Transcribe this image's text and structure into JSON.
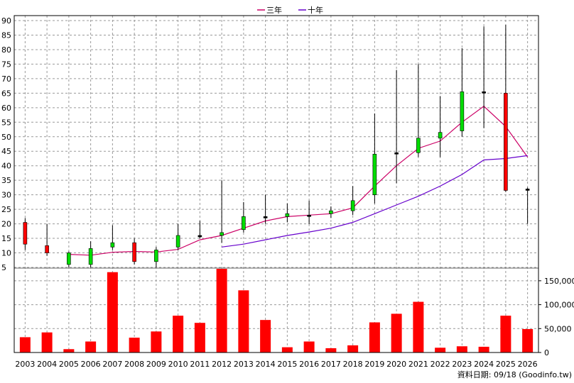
{
  "chart_data": {
    "type": "candlestick-with-volume",
    "legend": [
      {
        "name": "三年",
        "color": "#cc0066"
      },
      {
        "name": "十年",
        "color": "#6600cc"
      }
    ],
    "x": [
      "2003",
      "2004",
      "2005",
      "2006",
      "2007",
      "2008",
      "2009",
      "2010",
      "2011",
      "2012",
      "2013",
      "2014",
      "2015",
      "2016",
      "2017",
      "2018",
      "2019",
      "2020",
      "2021",
      "2022",
      "2023",
      "2024",
      "2025",
      "2026"
    ],
    "price_axis": {
      "ylim": [
        5,
        90
      ],
      "ticks": [
        5,
        10,
        15,
        20,
        25,
        30,
        35,
        40,
        45,
        50,
        55,
        60,
        65,
        70,
        75,
        80,
        85,
        90
      ]
    },
    "volume_axis": {
      "ylim": [
        0,
        175000
      ],
      "ticks": [
        "0",
        "50,000",
        "100,000",
        "150,000"
      ],
      "tick_values": [
        0,
        50000,
        100000,
        150000
      ]
    },
    "candles": [
      {
        "o": 13,
        "c": 20.5,
        "h": 22,
        "l": 11
      },
      {
        "o": 10,
        "c": 12.5,
        "h": 20,
        "l": 9
      },
      {
        "o": 10,
        "c": 6,
        "h": 10.5,
        "l": 5
      },
      {
        "o": 11.5,
        "c": 6,
        "h": 14,
        "l": 5
      },
      {
        "o": 13.5,
        "c": 12,
        "h": 19.5,
        "l": 11
      },
      {
        "o": 7,
        "c": 13.5,
        "h": 15,
        "l": 6
      },
      {
        "o": 11,
        "c": 7,
        "h": 12,
        "l": 5
      },
      {
        "o": 16,
        "c": 12,
        "h": 20,
        "l": 11
      },
      {
        "o": 16,
        "c": 16,
        "h": 21,
        "l": 15
      },
      {
        "o": 17,
        "c": 16,
        "h": 35,
        "l": 13.5
      },
      {
        "o": 22.5,
        "c": 18,
        "h": 27.5,
        "l": 17
      },
      {
        "o": 22.5,
        "c": 22.5,
        "h": 30,
        "l": 20
      },
      {
        "o": 23.5,
        "c": 22.5,
        "h": 27,
        "l": 20.5
      },
      {
        "o": 23,
        "c": 23,
        "h": 28,
        "l": 20
      },
      {
        "o": 24.5,
        "c": 23.5,
        "h": 26,
        "l": 22
      },
      {
        "o": 28,
        "c": 24.5,
        "h": 33,
        "l": 23
      },
      {
        "o": 44,
        "c": 30,
        "h": 58,
        "l": 27
      },
      {
        "o": 44.5,
        "c": 44.5,
        "h": 73,
        "l": 34
      },
      {
        "o": 49.5,
        "c": 44.5,
        "h": 75,
        "l": 43
      },
      {
        "o": 51.5,
        "c": 49.5,
        "h": 64,
        "l": 43
      },
      {
        "o": 65.5,
        "c": 52,
        "h": 80.5,
        "l": 50
      },
      {
        "o": 65.5,
        "c": 65.5,
        "h": 88,
        "l": 53
      },
      {
        "o": 31.5,
        "c": 65,
        "h": 88.5,
        "l": 31
      },
      {
        "o": 32,
        "c": 32,
        "h": 32.5,
        "l": 20
      }
    ],
    "ma3": [
      null,
      null,
      9.5,
      9.2,
      10.2,
      10.5,
      10.3,
      11.2,
      14.5,
      16,
      18.5,
      21,
      22.5,
      23,
      23.5,
      25.5,
      33,
      40,
      46,
      48.5,
      55,
      60.5,
      53.5,
      43
    ],
    "ma10": [
      null,
      null,
      null,
      null,
      null,
      null,
      null,
      null,
      null,
      12,
      13,
      14.5,
      16,
      17.2,
      18.5,
      20.5,
      23.5,
      26.5,
      29.5,
      33,
      37,
      42,
      42.5,
      43.5
    ],
    "volume": [
      32000,
      42000,
      7000,
      23000,
      168000,
      31000,
      44000,
      77000,
      62000,
      175000,
      130000,
      68000,
      11000,
      23000,
      9000,
      15000,
      63000,
      81000,
      106000,
      10000,
      13000,
      12000,
      77000,
      49000
    ]
  },
  "footer": {
    "source": "資料日期: 09/18  (Goodinfo.tw)"
  },
  "colors": {
    "up": "#ff0000",
    "down": "#00dd00",
    "volume": "#ff0000",
    "grid": "#999999"
  }
}
